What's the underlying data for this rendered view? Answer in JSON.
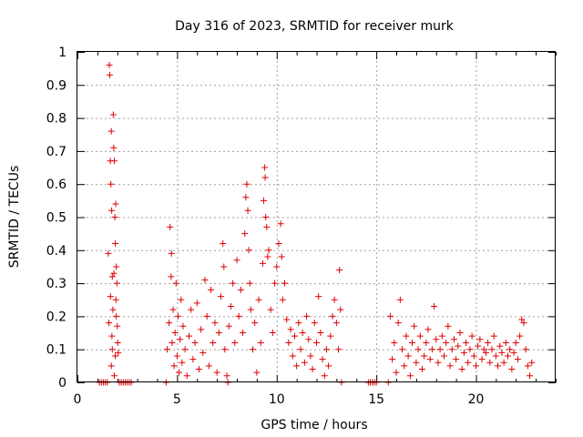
{
  "chart_data": {
    "type": "scatter",
    "title": "Day 316 of 2023, SRMTID for receiver murk",
    "xlabel": "GPS time / hours",
    "ylabel": "SRMTID / TECUs",
    "xlim": [
      0,
      24
    ],
    "ylim": [
      0,
      1
    ],
    "xticks": [
      0,
      5,
      10,
      15,
      20
    ],
    "xtick_labels": [
      "0",
      "5",
      "10",
      "15",
      "20"
    ],
    "yticks": [
      0,
      0.1,
      0.2,
      0.3,
      0.4,
      0.5,
      0.6,
      0.7,
      0.8,
      0.9,
      1
    ],
    "ytick_labels": [
      "0",
      "0.1",
      "0.2",
      "0.3",
      "0.4",
      "0.5",
      "0.6",
      "0.7",
      "0.8",
      "0.9",
      "1"
    ],
    "grid": true,
    "marker": "plus",
    "color": "#e00000",
    "series": [
      {
        "points": [
          [
            1.1,
            0
          ],
          [
            1.2,
            0
          ],
          [
            1.3,
            0
          ],
          [
            1.4,
            0
          ],
          [
            1.5,
            0
          ],
          [
            1.55,
            0.39
          ],
          [
            1.6,
            0.96
          ],
          [
            1.62,
            0.93
          ],
          [
            1.65,
            0.67
          ],
          [
            1.68,
            0.6
          ],
          [
            1.7,
            0.76
          ],
          [
            1.72,
            0.52
          ],
          [
            1.75,
            0.32
          ],
          [
            1.78,
            0.22
          ],
          [
            1.8,
            0.81
          ],
          [
            1.82,
            0.71
          ],
          [
            1.85,
            0.67
          ],
          [
            1.88,
            0.5
          ],
          [
            1.9,
            0.42
          ],
          [
            1.92,
            0.54
          ],
          [
            1.95,
            0.35
          ],
          [
            1.98,
            0.3
          ],
          [
            2.0,
            0.17
          ],
          [
            2.02,
            0.12
          ],
          [
            1.7,
            0.05
          ],
          [
            1.75,
            0.1
          ],
          [
            1.85,
            0.02
          ],
          [
            1.9,
            0.08
          ],
          [
            1.95,
            0.2
          ],
          [
            2.05,
            0.09
          ],
          [
            1.58,
            0.18
          ],
          [
            1.66,
            0.26
          ],
          [
            1.73,
            0.14
          ],
          [
            1.83,
            0.33
          ],
          [
            1.93,
            0.25
          ],
          [
            2.1,
            0
          ],
          [
            2.2,
            0
          ],
          [
            2.3,
            0
          ],
          [
            2.4,
            0
          ],
          [
            2.5,
            0
          ],
          [
            2.6,
            0
          ],
          [
            2.7,
            0
          ],
          [
            4.45,
            0
          ],
          [
            4.5,
            0.1
          ],
          [
            4.6,
            0.18
          ],
          [
            4.65,
            0.47
          ],
          [
            4.7,
            0.32
          ],
          [
            4.72,
            0.39
          ],
          [
            4.75,
            0.12
          ],
          [
            4.8,
            0.22
          ],
          [
            4.85,
            0.05
          ],
          [
            4.9,
            0.15
          ],
          [
            4.95,
            0.3
          ],
          [
            5.0,
            0.08
          ],
          [
            5.05,
            0.2
          ],
          [
            5.1,
            0.03
          ],
          [
            5.15,
            0.13
          ],
          [
            5.2,
            0.25
          ],
          [
            5.25,
            0.06
          ],
          [
            5.3,
            0.17
          ],
          [
            5.4,
            0.1
          ],
          [
            5.5,
            0.02
          ],
          [
            5.6,
            0.14
          ],
          [
            5.7,
            0.22
          ],
          [
            5.8,
            0.07
          ],
          [
            5.9,
            0.12
          ],
          [
            6.0,
            0.24
          ],
          [
            6.1,
            0.04
          ],
          [
            6.2,
            0.16
          ],
          [
            6.3,
            0.09
          ],
          [
            6.4,
            0.31
          ],
          [
            6.5,
            0.2
          ],
          [
            6.6,
            0.05
          ],
          [
            6.7,
            0.28
          ],
          [
            6.8,
            0.12
          ],
          [
            6.9,
            0.18
          ],
          [
            7.0,
            0.03
          ],
          [
            7.1,
            0.15
          ],
          [
            7.2,
            0.26
          ],
          [
            7.3,
            0.42
          ],
          [
            7.35,
            0.35
          ],
          [
            7.4,
            0.1
          ],
          [
            7.5,
            0.02
          ],
          [
            7.55,
            0
          ],
          [
            7.6,
            0.17
          ],
          [
            7.7,
            0.23
          ],
          [
            7.8,
            0.3
          ],
          [
            7.9,
            0.12
          ],
          [
            8.0,
            0.37
          ],
          [
            8.1,
            0.2
          ],
          [
            8.2,
            0.28
          ],
          [
            8.3,
            0.15
          ],
          [
            8.4,
            0.45
          ],
          [
            8.45,
            0.56
          ],
          [
            8.5,
            0.6
          ],
          [
            8.55,
            0.52
          ],
          [
            8.6,
            0.4
          ],
          [
            8.65,
            0.3
          ],
          [
            8.7,
            0.22
          ],
          [
            8.8,
            0.1
          ],
          [
            8.9,
            0.18
          ],
          [
            9.0,
            0.03
          ],
          [
            9.1,
            0.25
          ],
          [
            9.2,
            0.12
          ],
          [
            9.3,
            0.36
          ],
          [
            9.35,
            0.55
          ],
          [
            9.4,
            0.65
          ],
          [
            9.42,
            0.62
          ],
          [
            9.45,
            0.5
          ],
          [
            9.5,
            0.47
          ],
          [
            9.55,
            0.38
          ],
          [
            9.6,
            0.4
          ],
          [
            9.7,
            0.22
          ],
          [
            9.8,
            0.15
          ],
          [
            9.9,
            0.3
          ],
          [
            10.0,
            0.35
          ],
          [
            10.1,
            0.42
          ],
          [
            10.2,
            0.48
          ],
          [
            10.25,
            0.38
          ],
          [
            10.3,
            0.25
          ],
          [
            10.4,
            0.3
          ],
          [
            10.5,
            0.19
          ],
          [
            10.6,
            0.12
          ],
          [
            10.7,
            0.16
          ],
          [
            10.8,
            0.08
          ],
          [
            10.9,
            0.14
          ],
          [
            11.0,
            0.05
          ],
          [
            11.1,
            0.18
          ],
          [
            11.2,
            0.1
          ],
          [
            11.3,
            0.15
          ],
          [
            11.4,
            0.06
          ],
          [
            11.5,
            0.2
          ],
          [
            11.6,
            0.13
          ],
          [
            11.7,
            0.08
          ],
          [
            11.8,
            0.04
          ],
          [
            11.9,
            0.18
          ],
          [
            12.0,
            0.12
          ],
          [
            12.1,
            0.26
          ],
          [
            12.2,
            0.15
          ],
          [
            12.3,
            0.07
          ],
          [
            12.4,
            0.02
          ],
          [
            12.5,
            0.1
          ],
          [
            12.6,
            0.05
          ],
          [
            12.7,
            0.14
          ],
          [
            12.8,
            0.2
          ],
          [
            12.9,
            0.25
          ],
          [
            13.0,
            0.18
          ],
          [
            13.1,
            0.1
          ],
          [
            13.15,
            0.34
          ],
          [
            13.2,
            0.22
          ],
          [
            13.25,
            0
          ],
          [
            14.6,
            0
          ],
          [
            14.7,
            0
          ],
          [
            14.8,
            0
          ],
          [
            14.9,
            0
          ],
          [
            15.0,
            0
          ],
          [
            15.6,
            0
          ],
          [
            15.7,
            0.2
          ],
          [
            15.8,
            0.07
          ],
          [
            15.9,
            0.12
          ],
          [
            16.0,
            0.03
          ],
          [
            16.1,
            0.18
          ],
          [
            16.2,
            0.25
          ],
          [
            16.3,
            0.1
          ],
          [
            16.4,
            0.05
          ],
          [
            16.5,
            0.14
          ],
          [
            16.6,
            0.08
          ],
          [
            16.7,
            0.02
          ],
          [
            16.8,
            0.12
          ],
          [
            16.9,
            0.17
          ],
          [
            17.0,
            0.06
          ],
          [
            17.1,
            0.1
          ],
          [
            17.2,
            0.14
          ],
          [
            17.3,
            0.04
          ],
          [
            17.4,
            0.08
          ],
          [
            17.5,
            0.12
          ],
          [
            17.6,
            0.16
          ],
          [
            17.7,
            0.07
          ],
          [
            17.8,
            0.1
          ],
          [
            17.9,
            0.23
          ],
          [
            18.0,
            0.13
          ],
          [
            18.1,
            0.06
          ],
          [
            18.2,
            0.1
          ],
          [
            18.3,
            0.14
          ],
          [
            18.4,
            0.08
          ],
          [
            18.5,
            0.12
          ],
          [
            18.6,
            0.17
          ],
          [
            18.7,
            0.05
          ],
          [
            18.8,
            0.1
          ],
          [
            18.9,
            0.13
          ],
          [
            19.0,
            0.07
          ],
          [
            19.1,
            0.11
          ],
          [
            19.2,
            0.15
          ],
          [
            19.3,
            0.04
          ],
          [
            19.4,
            0.09
          ],
          [
            19.5,
            0.12
          ],
          [
            19.6,
            0.06
          ],
          [
            19.7,
            0.1
          ],
          [
            19.8,
            0.14
          ],
          [
            19.9,
            0.08
          ],
          [
            20.0,
            0.05
          ],
          [
            20.1,
            0.11
          ],
          [
            20.2,
            0.13
          ],
          [
            20.3,
            0.07
          ],
          [
            20.4,
            0.1
          ],
          [
            20.5,
            0.09
          ],
          [
            20.6,
            0.12
          ],
          [
            20.7,
            0.06
          ],
          [
            20.8,
            0.1
          ],
          [
            20.9,
            0.14
          ],
          [
            21.0,
            0.08
          ],
          [
            21.1,
            0.05
          ],
          [
            21.2,
            0.11
          ],
          [
            21.3,
            0.09
          ],
          [
            21.4,
            0.06
          ],
          [
            21.5,
            0.12
          ],
          [
            21.6,
            0.08
          ],
          [
            21.7,
            0.1
          ],
          [
            21.8,
            0.04
          ],
          [
            21.9,
            0.09
          ],
          [
            22.0,
            0.12
          ],
          [
            22.1,
            0.07
          ],
          [
            22.2,
            0.14
          ],
          [
            22.3,
            0.19
          ],
          [
            22.4,
            0.18
          ],
          [
            22.5,
            0.1
          ],
          [
            22.6,
            0.05
          ],
          [
            22.7,
            0.02
          ],
          [
            22.8,
            0.06
          ]
        ]
      }
    ]
  }
}
